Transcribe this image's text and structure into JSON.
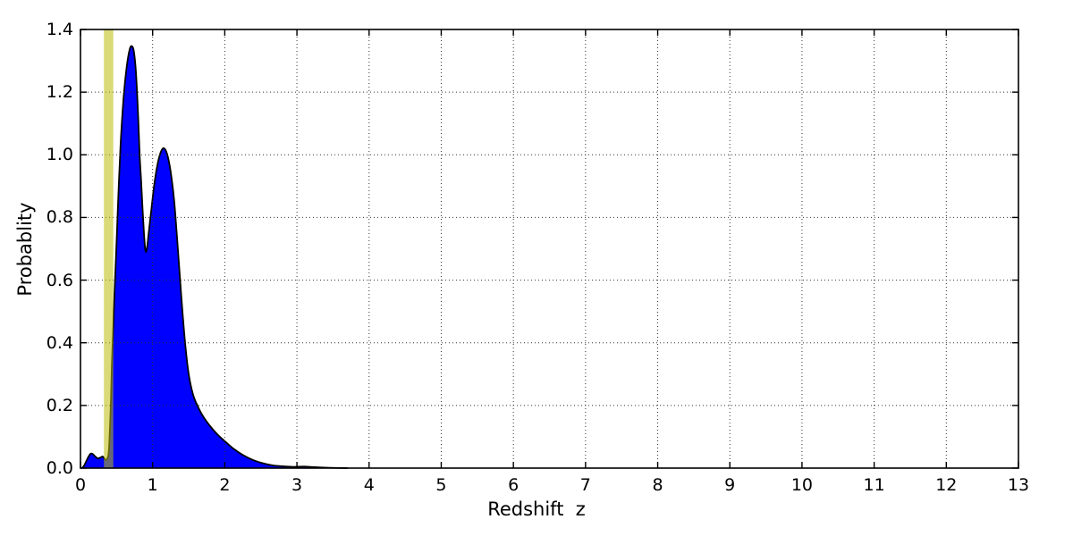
{
  "figure": {
    "background": "#ffffff"
  },
  "chart_data": {
    "type": "area",
    "title": "",
    "xlabel": "Redshift  z",
    "ylabel": "Probablity",
    "xlim": [
      0,
      13
    ],
    "ylim": [
      0.0,
      1.4
    ],
    "x_ticks": [
      "0",
      "1",
      "2",
      "3",
      "4",
      "5",
      "6",
      "7",
      "8",
      "9",
      "10",
      "11",
      "12",
      "13"
    ],
    "y_ticks": [
      "0.0",
      "0.2",
      "0.4",
      "0.6",
      "0.8",
      "1.0",
      "1.2",
      "1.4"
    ],
    "grid": {
      "style": "dotted",
      "color": "#333333",
      "on": true
    },
    "legend": {
      "visible": false
    },
    "series": [
      {
        "type": "filled-line",
        "fill_color": "#0000ff",
        "line_color": "#000000",
        "x": [
          0.02,
          0.05,
          0.08,
          0.11,
          0.14,
          0.17,
          0.2,
          0.24,
          0.28,
          0.31,
          0.34,
          0.37,
          0.395,
          0.42,
          0.435,
          0.45,
          0.47,
          0.5,
          0.53,
          0.56,
          0.6,
          0.64,
          0.68,
          0.71,
          0.74,
          0.77,
          0.8,
          0.82,
          0.84,
          0.86,
          0.88,
          0.9,
          0.92,
          0.95,
          0.98,
          1.02,
          1.06,
          1.1,
          1.14,
          1.18,
          1.22,
          1.26,
          1.3,
          1.35,
          1.4,
          1.45,
          1.5,
          1.56,
          1.63,
          1.7,
          1.8,
          1.9,
          2.0,
          2.12,
          2.25,
          2.38,
          2.52,
          2.66,
          2.8,
          2.95,
          3.1,
          3.25,
          3.45,
          3.7
        ],
        "y": [
          0.0,
          0.008,
          0.022,
          0.036,
          0.046,
          0.045,
          0.038,
          0.031,
          0.034,
          0.037,
          0.028,
          0.03,
          0.06,
          0.2,
          0.33,
          0.42,
          0.55,
          0.72,
          0.9,
          1.05,
          1.19,
          1.28,
          1.335,
          1.347,
          1.33,
          1.26,
          1.12,
          1.0,
          0.92,
          0.83,
          0.75,
          0.695,
          0.7,
          0.76,
          0.82,
          0.9,
          0.96,
          1.0,
          1.02,
          1.015,
          0.985,
          0.93,
          0.85,
          0.7,
          0.54,
          0.4,
          0.3,
          0.235,
          0.195,
          0.165,
          0.133,
          0.107,
          0.086,
          0.062,
          0.042,
          0.027,
          0.016,
          0.009,
          0.006,
          0.004,
          0.005,
          0.003,
          0.001,
          0.0
        ]
      }
    ],
    "marker_band": {
      "x_min": 0.325,
      "x_max": 0.455,
      "color": "#bbbb0a",
      "opacity": 0.55
    }
  }
}
